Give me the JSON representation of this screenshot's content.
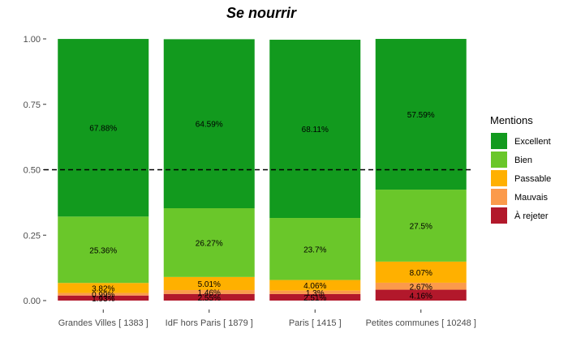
{
  "chart_data": {
    "type": "bar",
    "stacked": true,
    "title": "Se nourrir",
    "xlabel": "",
    "ylabel": "",
    "ylim": [
      0,
      1
    ],
    "y_ticks": [
      "0.00",
      "0.25",
      "0.50",
      "0.75",
      "1.00"
    ],
    "y_tick_values": [
      0,
      0.25,
      0.5,
      0.75,
      1.0
    ],
    "reference_line": {
      "y": 0.5,
      "style": "dashed"
    },
    "grid": false,
    "categories": [
      "Grandes Villes  [ 1383 ]",
      "IdF hors Paris  [ 1879 ]",
      "Paris  [ 1415 ]",
      "Petites communes  [ 10248 ]"
    ],
    "series": [
      {
        "name": "À rejeter",
        "color": "#b2182b",
        "values": [
          0.0193,
          0.0255,
          0.0251,
          0.0416
        ],
        "labels": [
          "1.93%",
          "2.55%",
          "2.51%",
          "4.16%"
        ]
      },
      {
        "name": "Mauvais",
        "color": "#fb9a4b",
        "values": [
          0.0099,
          0.0146,
          0.013,
          0.0267
        ],
        "labels": [
          "0.99%",
          "1.46%",
          "1.3%",
          "2.67%"
        ]
      },
      {
        "name": "Passable",
        "color": "#ffb000",
        "values": [
          0.0382,
          0.0501,
          0.0406,
          0.0807
        ],
        "labels": [
          "3.82%",
          "5.01%",
          "4.06%",
          "8.07%"
        ]
      },
      {
        "name": "Bien",
        "color": "#6ac72a",
        "values": [
          0.2536,
          0.2627,
          0.237,
          0.275
        ],
        "labels": [
          "25.36%",
          "26.27%",
          "23.7%",
          "27.5%"
        ]
      },
      {
        "name": "Excellent",
        "color": "#129a1e",
        "values": [
          0.6788,
          0.6459,
          0.6811,
          0.5759
        ],
        "labels": [
          "67.88%",
          "64.59%",
          "68.11%",
          "57.59%"
        ]
      }
    ],
    "legend": {
      "title": "Mentions",
      "placement": "right",
      "order": [
        "Excellent",
        "Bien",
        "Passable",
        "Mauvais",
        "À rejeter"
      ]
    }
  }
}
